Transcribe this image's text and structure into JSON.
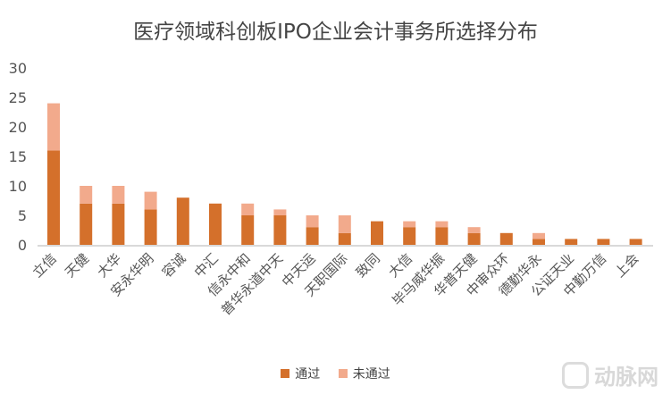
{
  "watermark": {
    "logo": "VB",
    "text": "动脉网"
  },
  "chart_data": {
    "type": "bar",
    "stacked": true,
    "title": "医疗领域科创板IPO企业会计事务所选择分布",
    "xlabel": "",
    "ylabel": "",
    "ylim": [
      0,
      30
    ],
    "yticks": [
      0,
      5,
      10,
      15,
      20,
      25,
      30
    ],
    "grid": false,
    "legend_position": "bottom",
    "categories": [
      "立信",
      "天健",
      "大华",
      "安永华明",
      "容诚",
      "中汇",
      "信永中和",
      "普华永道中天",
      "中天运",
      "天职国际",
      "致同",
      "大信",
      "毕马威华振",
      "华普天健",
      "中审众环",
      "德勤华永",
      "公证天业",
      "中勤万信",
      "上会"
    ],
    "series": [
      {
        "name": "通过",
        "color": "#d4702b",
        "values": [
          16,
          7,
          7,
          6,
          8,
          7,
          5,
          5,
          3,
          2,
          4,
          3,
          3,
          2,
          2,
          1,
          1,
          1,
          1
        ]
      },
      {
        "name": "未通过",
        "color": "#f2aa8c",
        "values": [
          8,
          3,
          3,
          3,
          0,
          0,
          2,
          1,
          2,
          3,
          0,
          1,
          1,
          1,
          0,
          1,
          0,
          0,
          0
        ]
      }
    ]
  }
}
